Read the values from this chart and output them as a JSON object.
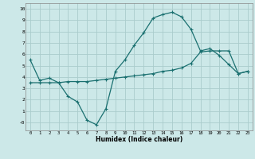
{
  "title": "",
  "xlabel": "Humidex (Indice chaleur)",
  "bg_color": "#cce8e8",
  "grid_color": "#aacccc",
  "line_color": "#1a7070",
  "xlim": [
    -0.5,
    23.5
  ],
  "ylim": [
    -0.7,
    10.5
  ],
  "xticks": [
    0,
    1,
    2,
    3,
    4,
    5,
    6,
    7,
    8,
    9,
    10,
    11,
    12,
    13,
    14,
    15,
    16,
    17,
    18,
    19,
    20,
    21,
    22,
    23
  ],
  "yticks": [
    0,
    1,
    2,
    3,
    4,
    5,
    6,
    7,
    8,
    9,
    10
  ],
  "ytick_labels": [
    "-0",
    "1",
    "2",
    "3",
    "4",
    "5",
    "6",
    "7",
    "8",
    "9",
    "10"
  ],
  "line1_x": [
    0,
    1,
    2,
    3,
    4,
    5,
    6,
    7,
    8,
    9,
    10,
    11,
    12,
    13,
    14,
    15,
    16,
    17,
    18,
    19,
    20,
    21,
    22,
    23
  ],
  "line1_y": [
    5.5,
    3.7,
    3.9,
    3.5,
    2.3,
    1.8,
    0.2,
    -0.2,
    1.2,
    4.5,
    5.5,
    6.8,
    7.9,
    9.2,
    9.5,
    9.7,
    9.3,
    8.2,
    6.3,
    6.5,
    5.9,
    5.1,
    4.3,
    4.5
  ],
  "line2_x": [
    0,
    1,
    2,
    3,
    4,
    5,
    6,
    7,
    8,
    9,
    10,
    11,
    12,
    13,
    14,
    15,
    16,
    17,
    18,
    19,
    20,
    21,
    22,
    23
  ],
  "line2_y": [
    3.5,
    3.5,
    3.5,
    3.5,
    3.6,
    3.6,
    3.6,
    3.7,
    3.8,
    3.9,
    4.0,
    4.1,
    4.2,
    4.3,
    4.5,
    4.6,
    4.8,
    5.2,
    6.2,
    6.3,
    6.3,
    6.3,
    4.3,
    4.5
  ]
}
